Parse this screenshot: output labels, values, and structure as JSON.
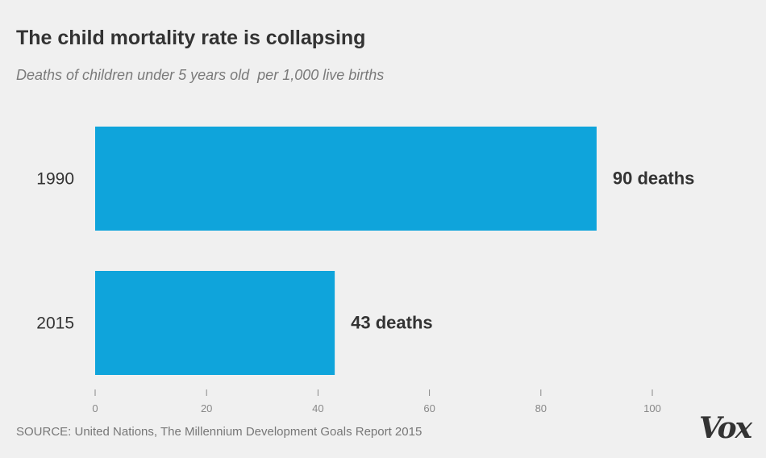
{
  "chart_data": {
    "type": "bar",
    "orientation": "horizontal",
    "title": "The child mortality rate is collapsing",
    "subtitle": "Deaths of children under 5 years old  per 1,000 live births",
    "categories": [
      "1990",
      "2015"
    ],
    "values": [
      90,
      43
    ],
    "data_labels": [
      "90 deaths",
      "43 deaths"
    ],
    "xlim": [
      0,
      100
    ],
    "xticks": [
      0,
      20,
      40,
      60,
      80,
      100
    ],
    "xlabel": "",
    "ylabel": "",
    "grid": false,
    "bar_color": "#0fa4db"
  },
  "footer": {
    "source": "SOURCE: United Nations, The Millennium Development Goals Report 2015",
    "brand": "Vox"
  },
  "colors": {
    "background": "#f0f0f0",
    "text": "#333333",
    "muted": "#7a7a7a"
  }
}
